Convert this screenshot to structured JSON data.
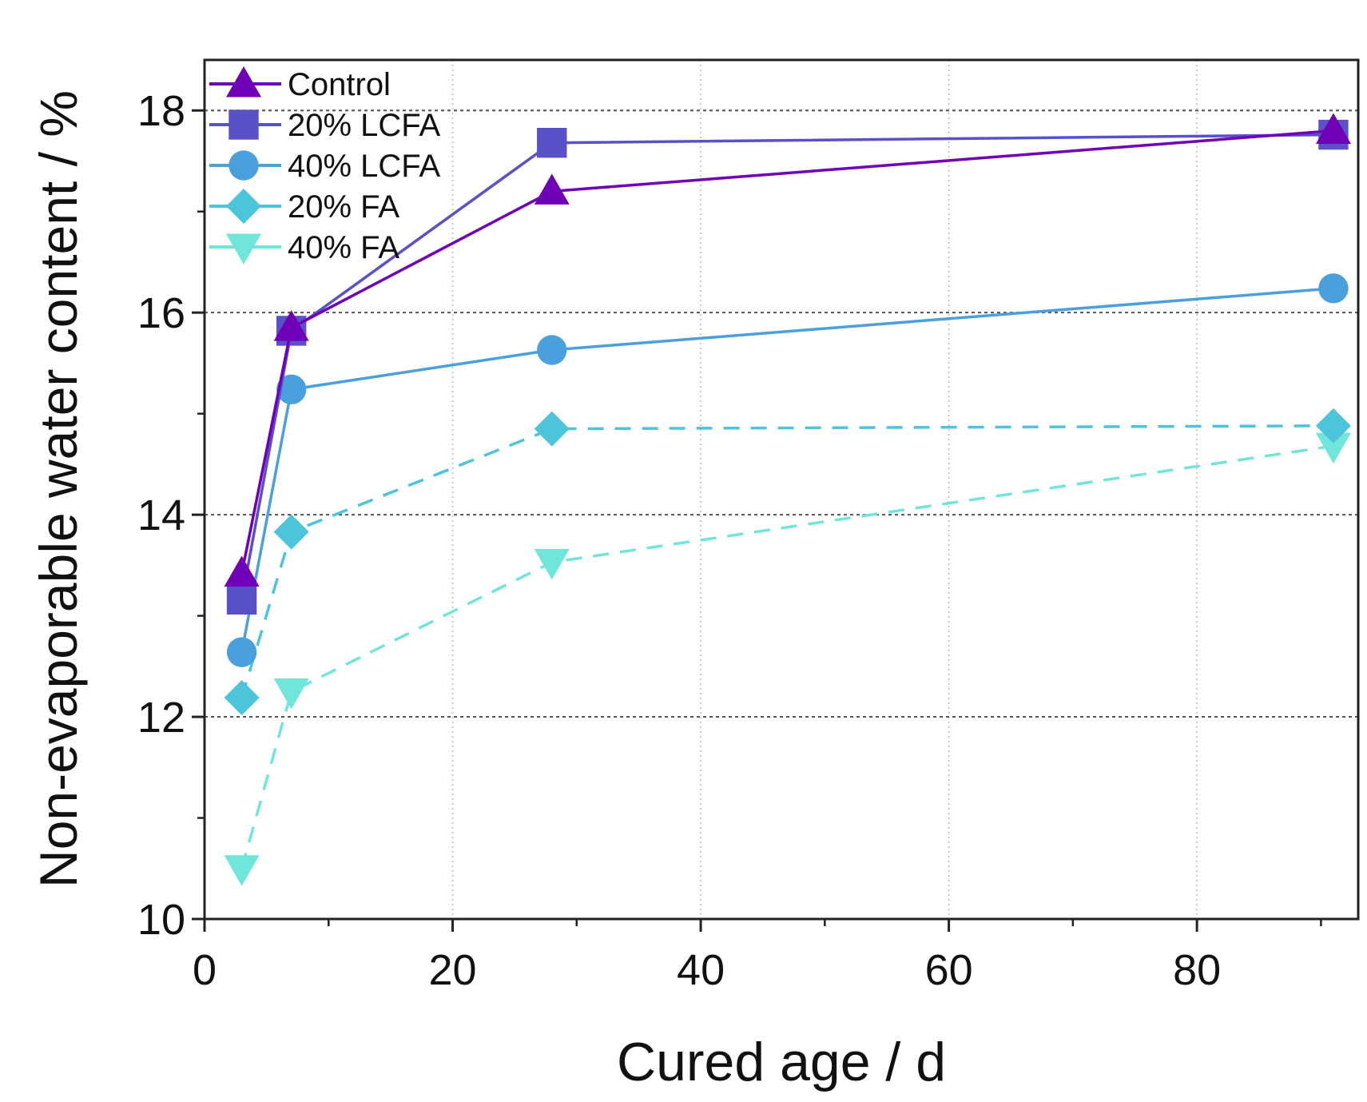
{
  "chart_data": {
    "type": "line",
    "title": "",
    "xlabel": "Cured age / d",
    "ylabel": "Non-evaporable water content / %",
    "xlim": [
      0,
      93
    ],
    "ylim": [
      10,
      18.5
    ],
    "xticks": [
      0,
      20,
      40,
      60,
      80
    ],
    "yticks": [
      10,
      12,
      14,
      16,
      18
    ],
    "xtick_labels": [
      "0",
      "20",
      "40",
      "60",
      "80"
    ],
    "ytick_labels": [
      "10",
      "12",
      "14",
      "16",
      "18"
    ],
    "grid": true,
    "legend_position": "top-left",
    "x": [
      3,
      7,
      28,
      91
    ],
    "series": [
      {
        "name": "Control",
        "values": [
          13.42,
          15.85,
          17.2,
          17.8
        ],
        "color": "#7000b8",
        "marker": "triangle-up",
        "dash": false
      },
      {
        "name": "20% LCFA",
        "values": [
          13.16,
          15.82,
          17.68,
          17.76
        ],
        "color": "#5a50c8",
        "marker": "square",
        "dash": false
      },
      {
        "name": "40% LCFA",
        "values": [
          12.64,
          15.24,
          15.63,
          16.24
        ],
        "color": "#4aa0dc",
        "marker": "circle",
        "dash": false
      },
      {
        "name": "20% FA",
        "values": [
          12.19,
          13.83,
          14.85,
          14.88
        ],
        "color": "#4cc4da",
        "marker": "diamond",
        "dash": true
      },
      {
        "name": "40% FA",
        "values": [
          10.5,
          12.25,
          13.53,
          14.68
        ],
        "color": "#70e6da",
        "marker": "triangle-down",
        "dash": true
      }
    ]
  }
}
